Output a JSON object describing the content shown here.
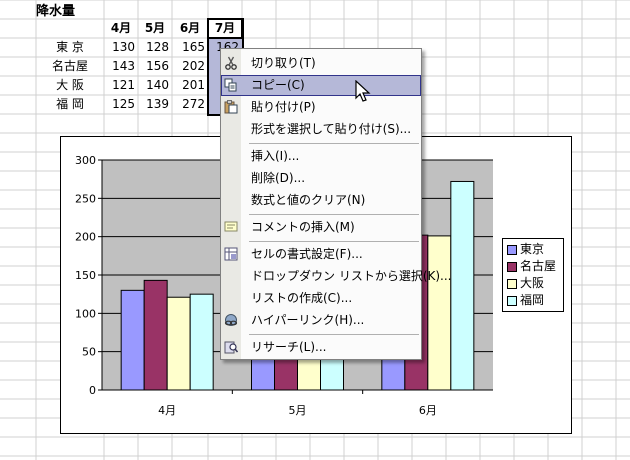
{
  "sheet": {
    "title": "降水量",
    "months": [
      "4月",
      "5月",
      "6月",
      "7月"
    ],
    "rows": [
      {
        "city": "東 京",
        "values": [
          "130",
          "128",
          "165",
          "162"
        ]
      },
      {
        "city": "名古屋",
        "values": [
          "143",
          "156",
          "202",
          ""
        ]
      },
      {
        "city": "大 阪",
        "values": [
          "121",
          "140",
          "201",
          ""
        ]
      },
      {
        "city": "福 岡",
        "values": [
          "125",
          "139",
          "272",
          ""
        ]
      }
    ]
  },
  "chart_data": {
    "type": "bar",
    "categories": [
      "4月",
      "5月",
      "6月"
    ],
    "series": [
      {
        "name": "東京",
        "values": [
          130,
          128,
          165
        ],
        "color": "#9999ff"
      },
      {
        "name": "名古屋",
        "values": [
          143,
          156,
          202
        ],
        "color": "#993366"
      },
      {
        "name": "大阪",
        "values": [
          121,
          140,
          201
        ],
        "color": "#ffffcc"
      },
      {
        "name": "福岡",
        "values": [
          125,
          139,
          272
        ],
        "color": "#ccffff"
      }
    ],
    "yticks": [
      "0",
      "50",
      "100",
      "150",
      "200",
      "250",
      "300"
    ],
    "ylim": [
      0,
      300
    ],
    "grid": true,
    "legend": "right",
    "plot_background": "#c0c0c0"
  },
  "context_menu": {
    "items": [
      {
        "label": "切り取り(T)",
        "icon": "scissors-icon"
      },
      {
        "label": "コピー(C)",
        "icon": "copy-icon",
        "highlighted": true
      },
      {
        "label": "貼り付け(P)",
        "icon": "paste-icon"
      },
      {
        "label": "形式を選択して貼り付け(S)..."
      },
      {
        "label": "挿入(I)..."
      },
      {
        "label": "削除(D)..."
      },
      {
        "label": "数式と値のクリア(N)"
      },
      {
        "label": "コメントの挿入(M)",
        "icon": "comment-icon"
      },
      {
        "label": "セルの書式設定(F)...",
        "icon": "format-cells-icon"
      },
      {
        "label": "ドロップダウン リストから選択(K)..."
      },
      {
        "label": "リストの作成(C)..."
      },
      {
        "label": "ハイパーリンク(H)...",
        "icon": "hyperlink-icon"
      },
      {
        "label": "リサーチ(L)...",
        "icon": "research-icon"
      }
    ]
  },
  "colors": {
    "selection": "#b5b8d8",
    "menu_highlight_border": "#31348b",
    "grid_line": "#d0d0d0"
  }
}
